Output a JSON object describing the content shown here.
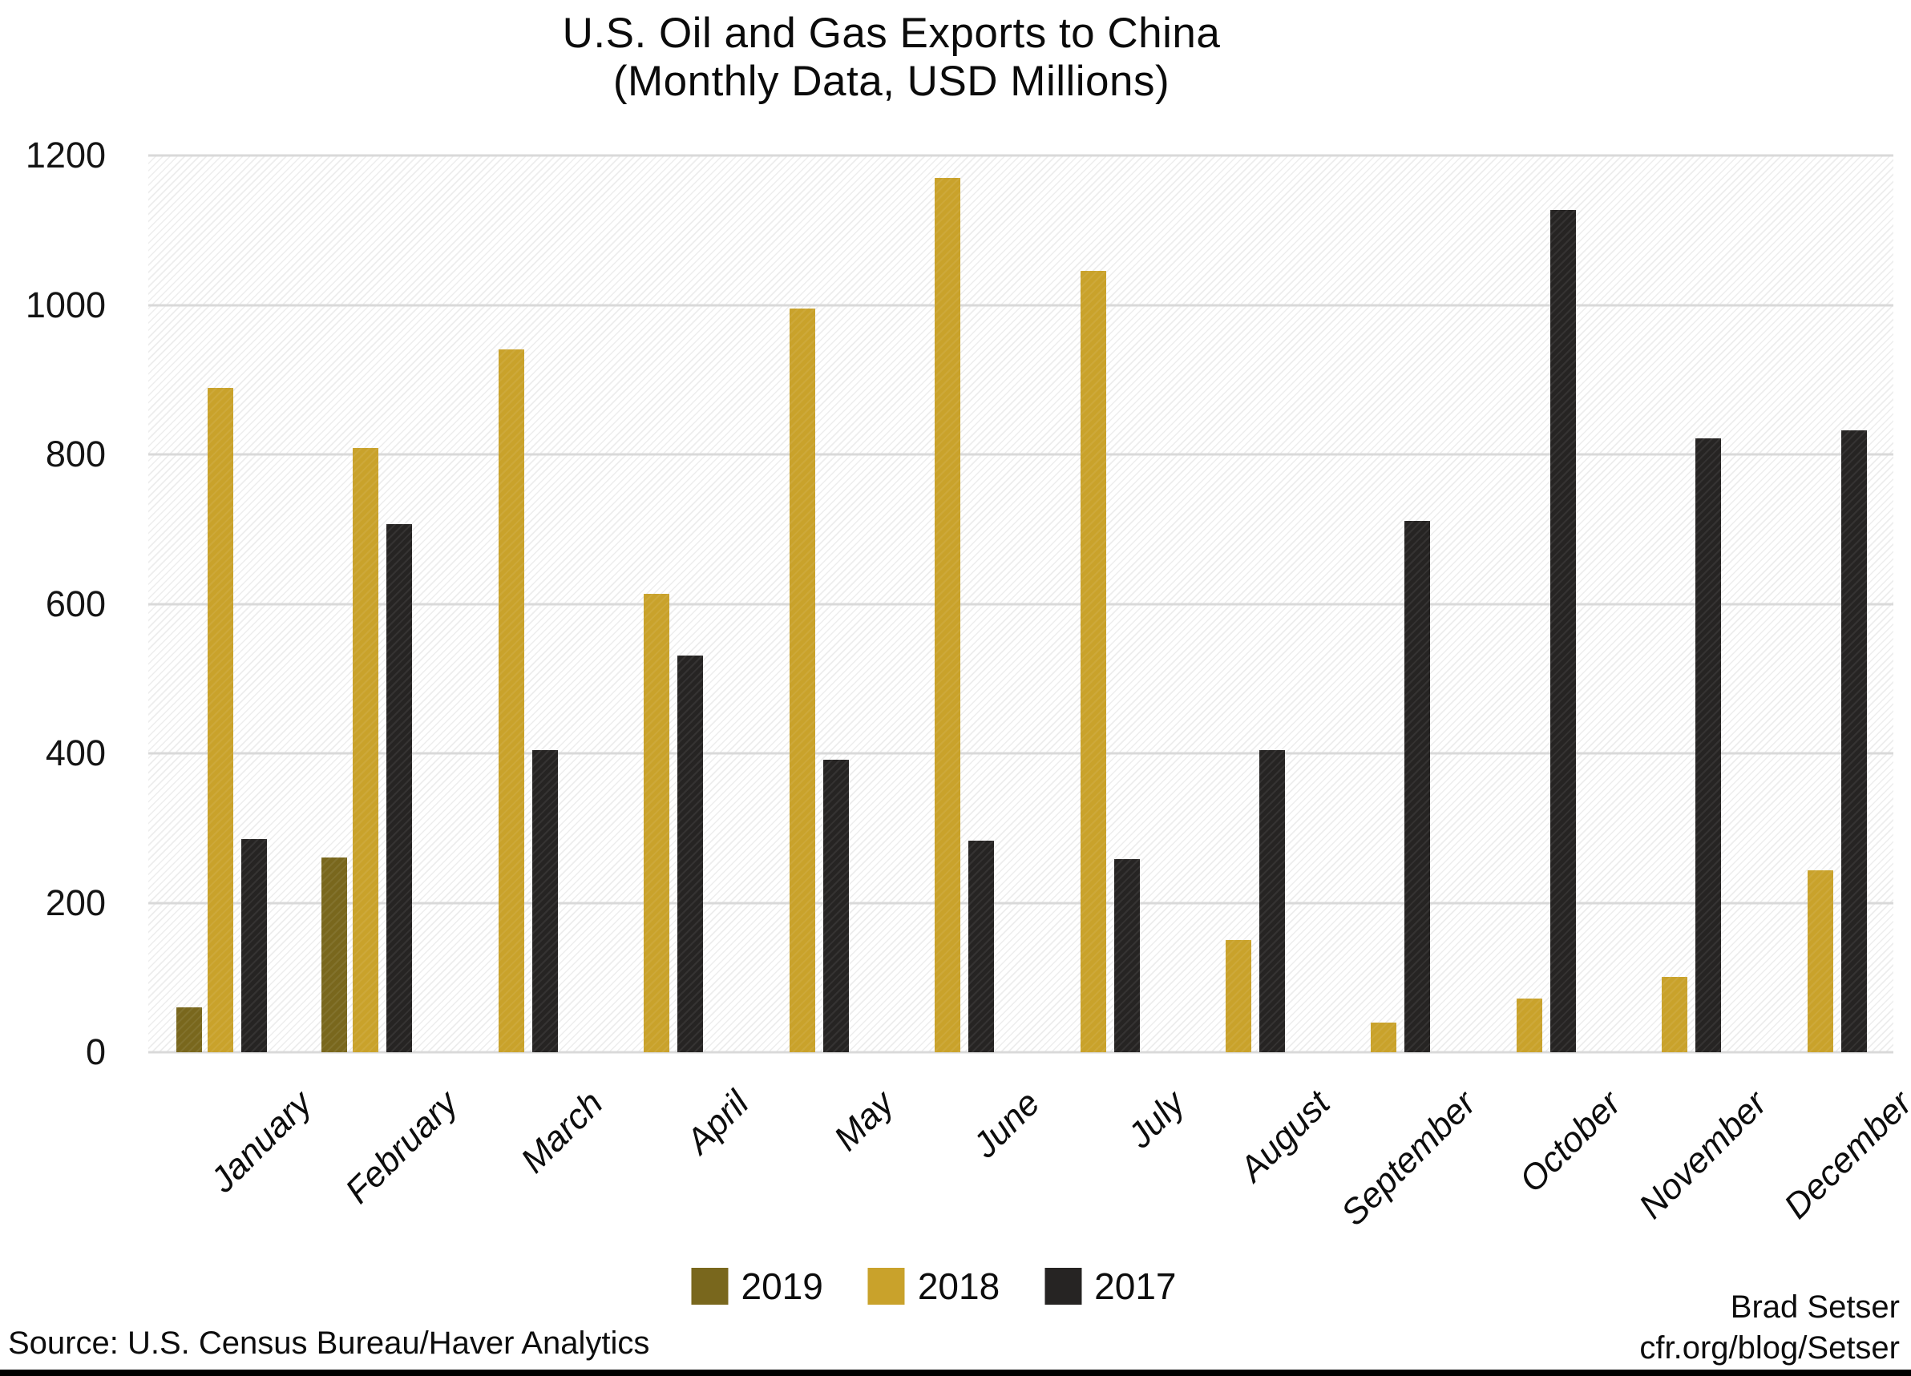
{
  "title": {
    "line1": "U.S. Oil and Gas Exports to China",
    "line2": "(Monthly Data, USD Millions)"
  },
  "footer": {
    "source": "Source: U.S. Census Bureau/Haver Analytics",
    "credit_line1": "Brad Setser",
    "credit_line2": "cfr.org/blog/Setser"
  },
  "colors": {
    "series_2019": "#79671d",
    "series_2018": "#c9a22b",
    "series_2017": "#262423",
    "gridline": "#d9d9d9"
  },
  "chart_data": {
    "type": "bar",
    "title": "U.S. Oil and Gas Exports to China",
    "subtitle": "(Monthly Data, USD Millions)",
    "categories": [
      "January",
      "February",
      "March",
      "April",
      "May",
      "June",
      "July",
      "August",
      "September",
      "October",
      "November",
      "December"
    ],
    "series": [
      {
        "name": "2019",
        "color": "#79671d",
        "values": [
          60,
          261,
          null,
          null,
          null,
          null,
          null,
          null,
          null,
          null,
          null,
          null
        ]
      },
      {
        "name": "2018",
        "color": "#c9a22b",
        "values": [
          889,
          809,
          940,
          613,
          995,
          1170,
          1046,
          150,
          40,
          72,
          101,
          243
        ]
      },
      {
        "name": "2017",
        "color": "#262423",
        "values": [
          285,
          707,
          404,
          531,
          391,
          283,
          258,
          404,
          711,
          1127,
          821,
          832
        ]
      }
    ],
    "xlabel": "",
    "ylabel": "",
    "ylim": [
      0,
      1200
    ],
    "yticks": [
      0,
      200,
      400,
      600,
      800,
      1000,
      1200
    ],
    "grid": true,
    "legend_position": "bottom"
  }
}
